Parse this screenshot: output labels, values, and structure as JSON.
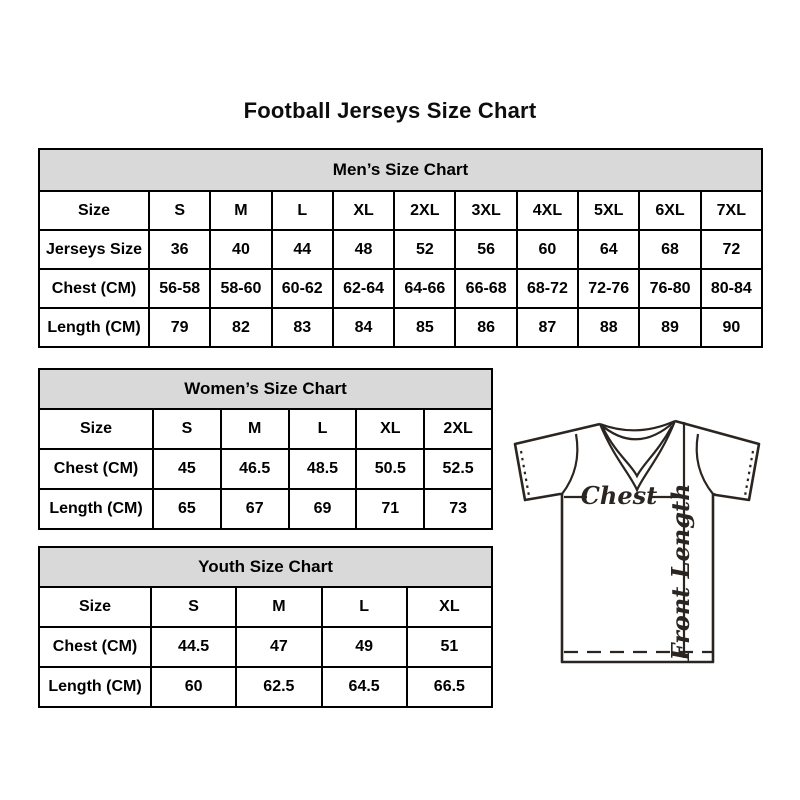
{
  "page": {
    "title": "Football Jerseys Size Chart"
  },
  "tables": {
    "men": {
      "title": "Men’s Size Chart",
      "rows": [
        {
          "label": "Size",
          "values": [
            "S",
            "M",
            "L",
            "XL",
            "2XL",
            "3XL",
            "4XL",
            "5XL",
            "6XL",
            "7XL"
          ]
        },
        {
          "label": "Jerseys Size",
          "values": [
            "36",
            "40",
            "44",
            "48",
            "52",
            "56",
            "60",
            "64",
            "68",
            "72"
          ]
        },
        {
          "label": "Chest (CM)",
          "values": [
            "56-58",
            "58-60",
            "60-62",
            "62-64",
            "64-66",
            "66-68",
            "68-72",
            "72-76",
            "76-80",
            "80-84"
          ]
        },
        {
          "label": "Length (CM)",
          "values": [
            "79",
            "82",
            "83",
            "84",
            "85",
            "86",
            "87",
            "88",
            "89",
            "90"
          ]
        }
      ]
    },
    "women": {
      "title": "Women’s Size Chart",
      "rows": [
        {
          "label": "Size",
          "values": [
            "S",
            "M",
            "L",
            "XL",
            "2XL"
          ]
        },
        {
          "label": "Chest (CM)",
          "values": [
            "45",
            "46.5",
            "48.5",
            "50.5",
            "52.5"
          ]
        },
        {
          "label": "Length (CM)",
          "values": [
            "65",
            "67",
            "69",
            "71",
            "73"
          ]
        }
      ]
    },
    "youth": {
      "title": "Youth Size Chart",
      "rows": [
        {
          "label": "Size",
          "values": [
            "S",
            "M",
            "L",
            "XL"
          ]
        },
        {
          "label": "Chest (CM)",
          "values": [
            "44.5",
            "47",
            "49",
            "51"
          ]
        },
        {
          "label": "Length (CM)",
          "values": [
            "60",
            "62.5",
            "64.5",
            "66.5"
          ]
        }
      ]
    }
  },
  "diagram": {
    "chest_label": "Chest",
    "front_length_label": "Front Length"
  },
  "colors": {
    "background": "#ffffff",
    "table_header_bg": "#d9d9d9",
    "table_border": "#000000",
    "text": "#000000",
    "diagram_stroke": "#2b2522"
  }
}
